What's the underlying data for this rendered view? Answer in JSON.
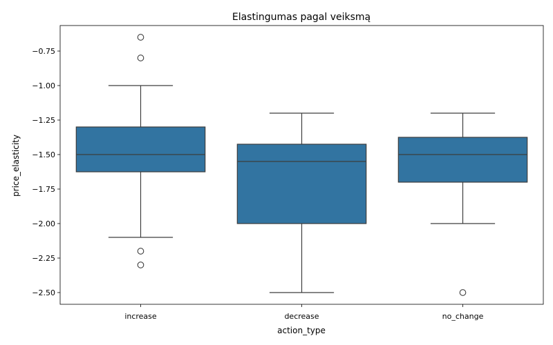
{
  "chart_data": {
    "type": "box",
    "title": "Elastingumas pagal veiksmą",
    "xlabel": "action_type",
    "ylabel": "price_elasticity",
    "ylim": [
      -2.585,
      -0.565
    ],
    "yticks": [
      -0.75,
      -1.0,
      -1.25,
      -1.5,
      -1.75,
      -2.0,
      -2.25,
      -2.5
    ],
    "ytick_labels": [
      "−0.75",
      "−1.00",
      "−1.25",
      "−1.50",
      "−1.75",
      "−2.00",
      "−2.25",
      "−2.50"
    ],
    "categories": [
      "increase",
      "decrease",
      "no_change"
    ],
    "boxes": [
      {
        "category": "increase",
        "whisker_low": -2.1,
        "q1": -1.625,
        "median": -1.5,
        "q3": -1.3,
        "whisker_high": -1.0,
        "outliers": [
          -0.65,
          -0.8,
          -2.2,
          -2.3
        ]
      },
      {
        "category": "decrease",
        "whisker_low": -2.5,
        "q1": -2.0,
        "median": -1.55,
        "q3": -1.425,
        "whisker_high": -1.2,
        "outliers": []
      },
      {
        "category": "no_change",
        "whisker_low": -2.0,
        "q1": -1.7,
        "median": -1.5,
        "q3": -1.375,
        "whisker_high": -1.2,
        "outliers": [
          -2.5
        ]
      }
    ],
    "box_color": "#3274a1",
    "line_color": "#3d3d3d",
    "grid": false,
    "legend": "none"
  }
}
